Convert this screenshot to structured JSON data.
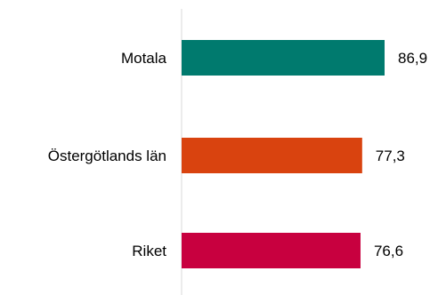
{
  "chart_data": {
    "type": "bar",
    "orientation": "horizontal",
    "categories": [
      "Motala",
      "Östergötlands län",
      "Riket"
    ],
    "values": [
      86.9,
      77.3,
      76.6
    ],
    "value_labels": [
      "86,9",
      "77,3",
      "76,6"
    ],
    "colors": [
      "#007a6e",
      "#d9430f",
      "#c8003f"
    ],
    "xlim": [
      0,
      100
    ],
    "grid": false,
    "legend": "none"
  }
}
